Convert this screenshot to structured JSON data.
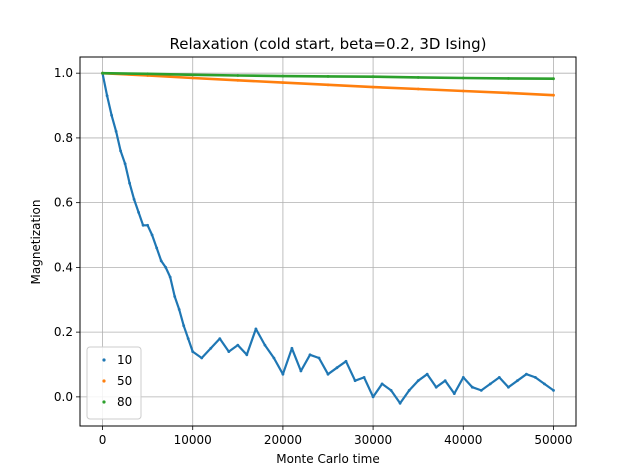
{
  "chart_data": {
    "type": "scatter",
    "title": "Relaxation (cold start, beta=0.2, 3D Ising)",
    "xlabel": "Monte Carlo time",
    "ylabel": "Magnetization",
    "xlim": [
      -2500,
      52500
    ],
    "ylim": [
      -0.09,
      1.05
    ],
    "xticks": [
      0,
      10000,
      20000,
      30000,
      40000,
      50000
    ],
    "xtick_labels": [
      "0",
      "10000",
      "20000",
      "30000",
      "40000",
      "50000"
    ],
    "yticks": [
      0.0,
      0.2,
      0.4,
      0.6,
      0.8,
      1.0
    ],
    "ytick_labels": [
      "0.0",
      "0.2",
      "0.4",
      "0.6",
      "0.8",
      "1.0"
    ],
    "grid": true,
    "legend_position": "lower-left",
    "series": [
      {
        "name": "10",
        "color": "#1f77b4",
        "points": [
          [
            0,
            1.0
          ],
          [
            500,
            0.93
          ],
          [
            1000,
            0.87
          ],
          [
            1500,
            0.82
          ],
          [
            2000,
            0.76
          ],
          [
            2500,
            0.72
          ],
          [
            3000,
            0.66
          ],
          [
            3500,
            0.61
          ],
          [
            4000,
            0.57
          ],
          [
            4500,
            0.53
          ],
          [
            5000,
            0.53
          ],
          [
            5500,
            0.5
          ],
          [
            6000,
            0.46
          ],
          [
            6500,
            0.42
          ],
          [
            7000,
            0.4
          ],
          [
            7500,
            0.37
          ],
          [
            8000,
            0.31
          ],
          [
            8500,
            0.27
          ],
          [
            9000,
            0.22
          ],
          [
            9500,
            0.18
          ],
          [
            10000,
            0.14
          ],
          [
            11000,
            0.12
          ],
          [
            12000,
            0.15
          ],
          [
            13000,
            0.18
          ],
          [
            14000,
            0.14
          ],
          [
            15000,
            0.16
          ],
          [
            16000,
            0.13
          ],
          [
            17000,
            0.21
          ],
          [
            18000,
            0.16
          ],
          [
            19000,
            0.12
          ],
          [
            20000,
            0.07
          ],
          [
            21000,
            0.15
          ],
          [
            22000,
            0.08
          ],
          [
            23000,
            0.13
          ],
          [
            24000,
            0.12
          ],
          [
            25000,
            0.07
          ],
          [
            26000,
            0.09
          ],
          [
            27000,
            0.11
          ],
          [
            28000,
            0.05
          ],
          [
            29000,
            0.06
          ],
          [
            30000,
            0.0
          ],
          [
            31000,
            0.04
          ],
          [
            32000,
            0.02
          ],
          [
            33000,
            -0.02
          ],
          [
            34000,
            0.02
          ],
          [
            35000,
            0.05
          ],
          [
            36000,
            0.07
          ],
          [
            37000,
            0.03
          ],
          [
            38000,
            0.05
          ],
          [
            39000,
            0.01
          ],
          [
            40000,
            0.06
          ],
          [
            41000,
            0.03
          ],
          [
            42000,
            0.02
          ],
          [
            43000,
            0.04
          ],
          [
            44000,
            0.06
          ],
          [
            45000,
            0.03
          ],
          [
            46000,
            0.05
          ],
          [
            47000,
            0.07
          ],
          [
            48000,
            0.06
          ],
          [
            49000,
            0.04
          ],
          [
            50000,
            0.02
          ]
        ]
      },
      {
        "name": "50",
        "color": "#ff7f0e",
        "points": [
          [
            0,
            1.0
          ],
          [
            5000,
            0.993
          ],
          [
            10000,
            0.985
          ],
          [
            15000,
            0.978
          ],
          [
            20000,
            0.971
          ],
          [
            25000,
            0.964
          ],
          [
            30000,
            0.957
          ],
          [
            35000,
            0.951
          ],
          [
            40000,
            0.945
          ],
          [
            45000,
            0.939
          ],
          [
            50000,
            0.932
          ]
        ]
      },
      {
        "name": "80",
        "color": "#2ca02c",
        "points": [
          [
            0,
            1.0
          ],
          [
            5000,
            0.998
          ],
          [
            10000,
            0.995
          ],
          [
            15000,
            0.993
          ],
          [
            20000,
            0.991
          ],
          [
            25000,
            0.99
          ],
          [
            30000,
            0.989
          ],
          [
            35000,
            0.987
          ],
          [
            40000,
            0.985
          ],
          [
            45000,
            0.984
          ],
          [
            50000,
            0.983
          ]
        ]
      }
    ]
  }
}
